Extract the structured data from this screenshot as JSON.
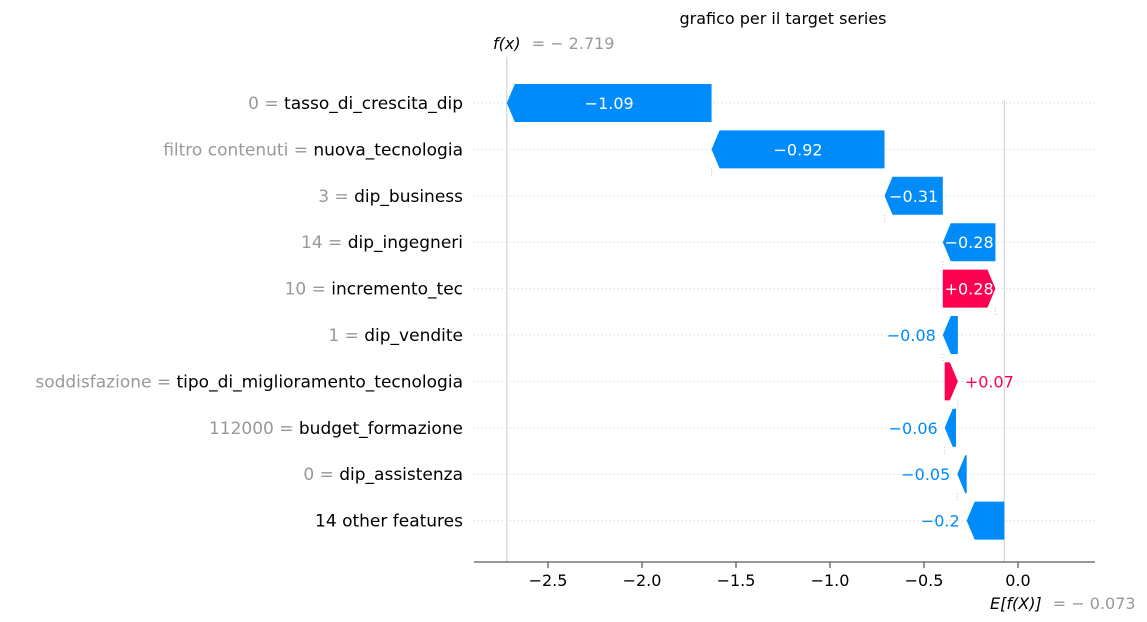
{
  "chart_data": {
    "type": "waterfall",
    "title": "grafico per il target series",
    "fx": {
      "label": "f(x)",
      "value": -2.719,
      "value_text": "− 2.719"
    },
    "expected": {
      "label": "E[f(X)]",
      "value": -0.073,
      "value_text": "− 0.073"
    },
    "xlim": [
      -2.85,
      0.33
    ],
    "xticks": [
      {
        "value": -2.5,
        "label": "−2.5"
      },
      {
        "value": -2.0,
        "label": "−2.0"
      },
      {
        "value": -1.5,
        "label": "−1.5"
      },
      {
        "value": -1.0,
        "label": "−1.0"
      },
      {
        "value": -0.5,
        "label": "−0.5"
      },
      {
        "value": 0.0,
        "label": "0.0"
      }
    ],
    "features": [
      {
        "value_text": "0 =",
        "name": "tasso_di_crescita_dip",
        "start": -1.63,
        "end": -2.719,
        "label": "−1.09",
        "sign": "neg"
      },
      {
        "value_text": "filtro contenuti =",
        "name": "nuova_tecnologia",
        "start": -0.71,
        "end": -1.63,
        "label": "−0.92",
        "sign": "neg"
      },
      {
        "value_text": "3 =",
        "name": "dip_business",
        "start": -0.4,
        "end": -0.71,
        "label": "−0.31",
        "sign": "neg"
      },
      {
        "value_text": "14 =",
        "name": "dip_ingegneri",
        "start": -0.12,
        "end": -0.4,
        "label": "−0.28",
        "sign": "neg"
      },
      {
        "value_text": "10 =",
        "name": "incremento_tec",
        "start": -0.4,
        "end": -0.12,
        "label": "+0.28",
        "sign": "pos"
      },
      {
        "value_text": "1 =",
        "name": "dip_vendite",
        "start": -0.32,
        "end": -0.4,
        "label": "−0.08",
        "sign": "neg"
      },
      {
        "value_text": "soddisfazione =",
        "name": "tipo_di_miglioramento_tecnologia",
        "start": -0.39,
        "end": -0.32,
        "label": "+0.07",
        "sign": "pos"
      },
      {
        "value_text": "112000 =",
        "name": "budget_formazione",
        "start": -0.33,
        "end": -0.39,
        "label": "−0.06",
        "sign": "neg"
      },
      {
        "value_text": "0 =",
        "name": "dip_assistenza",
        "start": -0.273,
        "end": -0.323,
        "label": "−0.05",
        "sign": "neg"
      },
      {
        "value_text": "",
        "name": "14 other features",
        "start": -0.073,
        "end": -0.273,
        "label": "−0.2",
        "sign": "neg"
      }
    ],
    "colors": {
      "negative": "#008bfb",
      "positive": "#ff0051",
      "muted": "#999999"
    },
    "grid": true
  }
}
